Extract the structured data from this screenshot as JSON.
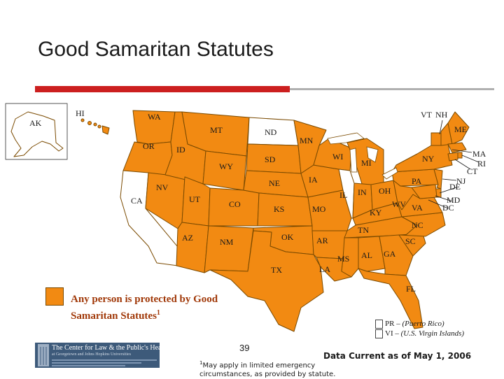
{
  "title": "Good Samaritan Statutes",
  "colors": {
    "protected": "#f28a12",
    "not_protected": "#ffffff",
    "border": "#7a4a00",
    "accent_rule": "#cc1f1f",
    "legend_text": "#a03808"
  },
  "legend": {
    "text_main": "Any person is protected by Good Samaritan Statutes",
    "footnote_marker": "1"
  },
  "states": {
    "protected": [
      "WA",
      "OR",
      "ID",
      "MT",
      "WY",
      "NV",
      "UT",
      "AZ",
      "CO",
      "NM",
      "SD",
      "NE",
      "KS",
      "OK",
      "TX",
      "MN",
      "IA",
      "MO",
      "AR",
      "LA",
      "WI",
      "MI",
      "IN",
      "OH",
      "KY",
      "TN",
      "MS",
      "AL",
      "GA",
      "FL",
      "SC",
      "NC",
      "VA",
      "WV",
      "PA",
      "NY",
      "VT",
      "NH",
      "ME",
      "MA",
      "RI",
      "CT",
      "NJ",
      "DE",
      "MD",
      "DC",
      "HI"
    ],
    "not_protected": [
      "CA",
      "ND",
      "IL",
      "AK"
    ]
  },
  "labels": {
    "AK": "AK",
    "HI": "HI",
    "WA": "WA",
    "OR": "OR",
    "ID": "ID",
    "MT": "MT",
    "WY": "WY",
    "NV": "NV",
    "CA": "CA",
    "UT": "UT",
    "AZ": "AZ",
    "CO": "CO",
    "NM": "NM",
    "ND": "ND",
    "SD": "SD",
    "NE": "NE",
    "KS": "KS",
    "OK": "OK",
    "TX": "TX",
    "MN": "MN",
    "IA": "IA",
    "MO": "MO",
    "AR": "AR",
    "LA": "LA",
    "WI": "WI",
    "IL": "IL",
    "MI": "MI",
    "IN": "IN",
    "OH": "OH",
    "KY": "KY",
    "TN": "TN",
    "MS": "MS",
    "AL": "AL",
    "GA": "GA",
    "FL": "FL",
    "SC": "SC",
    "NC": "NC",
    "VA": "VA",
    "WV": "WV",
    "PA": "PA",
    "NY": "NY",
    "VT": "VT",
    "NH": "NH",
    "ME": "ME",
    "MA": "MA",
    "RI": "RI",
    "CT": "CT",
    "NJ": "NJ",
    "DE": "DE",
    "MD": "MD",
    "DC": "DC"
  },
  "territories": [
    {
      "code": "PR",
      "name": "(Puerto Rico)"
    },
    {
      "code": "VI",
      "name": "(U.S. Virgin Islands)"
    }
  ],
  "page_number": "39",
  "data_current": "Data Current as of May 1, 2006",
  "footnote": {
    "marker": "1",
    "text": "May apply in limited emergency circumstances, as provided by statute."
  },
  "logo": {
    "title": "The Center for Law & the Public's Health",
    "subtitle": "at Georgetown and Johns Hopkins Universities"
  }
}
